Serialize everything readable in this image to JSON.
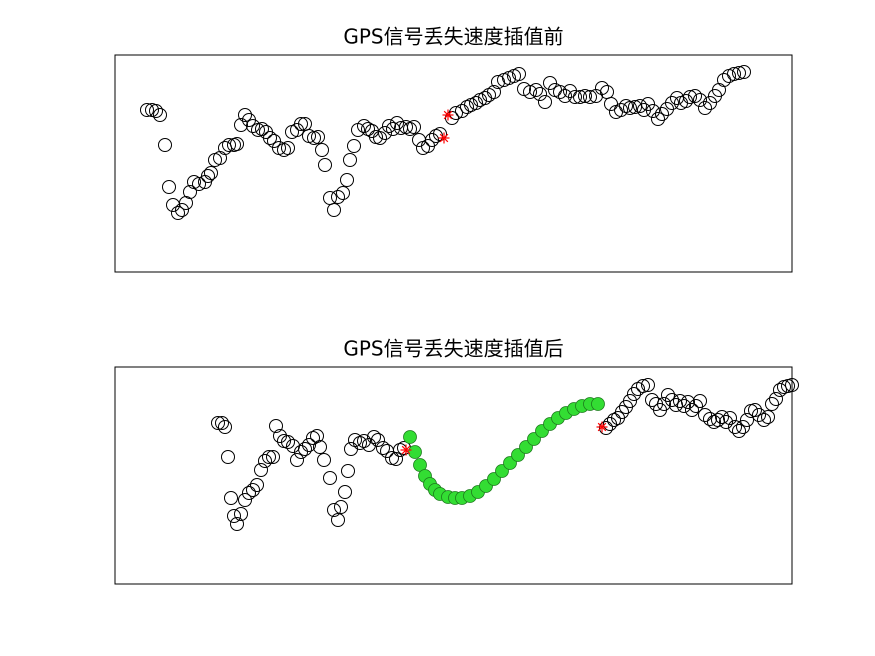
{
  "chart_data": [
    {
      "type": "scatter",
      "title": "GPS信号丢失速度插值前",
      "xlim": [
        0,
        677
      ],
      "ylim": [
        0,
        217
      ],
      "series": [
        {
          "color": "#000000",
          "marker": "circle",
          "x": [
            32,
            37,
            41,
            45,
            50,
            54,
            58,
            63,
            67,
            71,
            75,
            79,
            84,
            90,
            93,
            96,
            100,
            105,
            110,
            114,
            119,
            122,
            126,
            130,
            134,
            138,
            143,
            147,
            151,
            155,
            159,
            164,
            169,
            173,
            177,
            182,
            186,
            190,
            194,
            199,
            203,
            207,
            210,
            215,
            219,
            223,
            228,
            232,
            235,
            239,
            243,
            249,
            253,
            257,
            261,
            265,
            270,
            274,
            278,
            282,
            286,
            291,
            295,
            299,
            304,
            308,
            313,
            317,
            321,
            325,
            337,
            341,
            347,
            352,
            356,
            361,
            365,
            370,
            374,
            379,
            383,
            389,
            394,
            399,
            404,
            409,
            415,
            421,
            425,
            430,
            435,
            440,
            445,
            450,
            455,
            460,
            465,
            470,
            475,
            481,
            487,
            492,
            496,
            501,
            506,
            511,
            515,
            520,
            525,
            529,
            533,
            538,
            543,
            547,
            552,
            557,
            562,
            566,
            571,
            575,
            580,
            585,
            590,
            595,
            600,
            604,
            609,
            614,
            619,
            624,
            629
          ],
          "values": [
            162,
            162,
            161,
            157,
            127,
            85,
            67,
            59,
            62,
            69,
            80,
            90,
            88,
            90,
            96,
            99,
            112,
            114,
            124,
            127,
            127,
            128,
            147,
            157,
            152,
            146,
            142,
            143,
            140,
            134,
            131,
            124,
            122,
            124,
            140,
            142,
            148,
            148,
            136,
            134,
            135,
            122,
            107,
            74,
            62,
            75,
            79,
            92,
            112,
            126,
            142,
            146,
            143,
            141,
            135,
            134,
            139,
            146,
            143,
            149,
            144,
            145,
            143,
            145,
            132,
            124,
            126,
            132,
            136,
            138,
            154,
            159,
            161,
            165,
            167,
            169,
            172,
            174,
            177,
            180,
            190,
            192,
            194,
            196,
            198,
            183,
            180,
            182,
            178,
            170,
            189,
            182,
            180,
            176,
            181,
            175,
            175,
            176,
            175,
            176,
            184,
            180,
            168,
            160,
            162,
            166,
            164,
            165,
            166,
            162,
            168,
            161,
            153,
            158,
            163,
            169,
            174,
            169,
            171,
            175,
            176,
            172,
            164,
            169,
            176,
            182,
            192,
            196,
            198,
            199,
            200
          ]
        },
        {
          "color": "#ff0000",
          "marker": "star",
          "x": [
            333,
            329
          ],
          "values": [
            157,
            134
          ]
        }
      ]
    },
    {
      "type": "scatter",
      "title": "GPS信号丢失速度插值后",
      "xlim": [
        0,
        677
      ],
      "ylim": [
        0,
        217
      ],
      "series": [
        {
          "color": "#000000",
          "marker": "circle",
          "x": [
            103,
            107,
            110,
            113,
            116,
            119,
            122,
            126,
            130,
            134,
            138,
            142,
            146,
            150,
            154,
            158,
            161,
            165,
            169,
            173,
            178,
            182,
            186,
            190,
            194,
            198,
            202,
            205,
            209,
            215,
            219,
            223,
            226,
            230,
            233,
            236,
            240,
            245,
            249,
            254,
            259,
            263,
            268,
            272,
            277,
            281,
            285,
            289,
            491,
            495,
            499,
            503,
            507,
            511,
            515,
            519,
            523,
            528,
            533,
            537,
            541,
            545,
            549,
            553,
            557,
            561,
            565,
            569,
            573,
            577,
            581,
            585,
            590,
            595,
            599,
            603,
            607,
            611,
            615,
            620,
            624,
            628,
            632,
            636,
            640,
            644,
            649,
            653,
            657,
            661,
            665,
            669,
            673,
            677
          ],
          "values": [
            161,
            161,
            157,
            127,
            86,
            68,
            60,
            70,
            84,
            91,
            94,
            99,
            114,
            123,
            127,
            127,
            158,
            148,
            143,
            142,
            138,
            124,
            132,
            135,
            139,
            146,
            148,
            137,
            124,
            106,
            74,
            64,
            77,
            92,
            113,
            135,
            144,
            141,
            143,
            139,
            147,
            144,
            136,
            133,
            126,
            125,
            134,
            136,
            156,
            160,
            164,
            166,
            172,
            177,
            183,
            190,
            195,
            198,
            199,
            184,
            180,
            174,
            180,
            189,
            184,
            179,
            183,
            178,
            182,
            174,
            178,
            183,
            169,
            165,
            162,
            164,
            167,
            162,
            166,
            157,
            153,
            157,
            164,
            173,
            174,
            169,
            164,
            167,
            180,
            185,
            194,
            197,
            198,
            199
          ]
        },
        {
          "color": "#33dd33",
          "marker": "circle",
          "x": [
            295,
            300,
            305,
            310,
            315,
            320,
            325,
            333,
            340,
            347,
            355,
            363,
            371,
            379,
            387,
            395,
            403,
            411,
            419,
            427,
            435,
            443,
            451,
            459,
            467,
            475,
            483
          ],
          "values": [
            147,
            132,
            119,
            108,
            100,
            94,
            90,
            87,
            86,
            86,
            88,
            92,
            98,
            105,
            113,
            121,
            129,
            137,
            145,
            153,
            160,
            166,
            171,
            175,
            178,
            180,
            180
          ]
        },
        {
          "color": "#ff0000",
          "marker": "star",
          "x": [
            291,
            487
          ],
          "values": [
            134,
            157
          ]
        }
      ]
    }
  ]
}
